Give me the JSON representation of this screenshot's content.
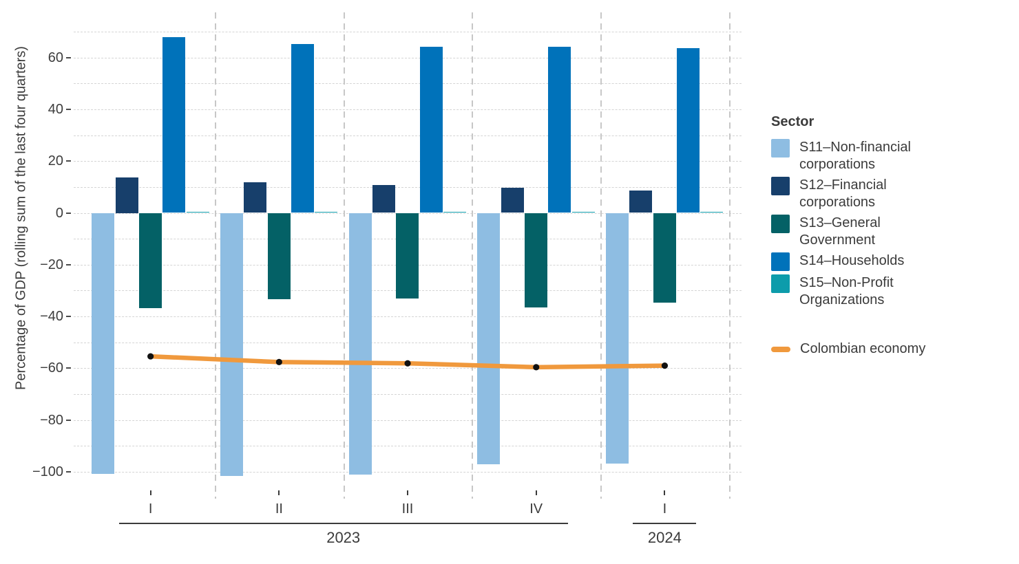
{
  "chart_data": {
    "type": "bar",
    "subtype": "grouped bars with overlaid line",
    "title": "",
    "xlabel": "",
    "ylabel": "Percentage of GDP (rolling sum of the last four quarters)",
    "categories": [
      "I",
      "II",
      "III",
      "IV",
      "I"
    ],
    "year_groups": [
      {
        "label": "2023",
        "from": 0,
        "to": 3
      },
      {
        "label": "2024",
        "from": 4,
        "to": 4
      }
    ],
    "series": [
      {
        "name": "S11–Non-financial corporations",
        "color": "#8ebde2",
        "values": [
          -100.8,
          -101.5,
          -101.0,
          -97.1,
          -96.7
        ]
      },
      {
        "name": "S12–Financial corporations",
        "color": "#173f6b",
        "values": [
          13.8,
          11.7,
          10.8,
          9.6,
          8.7
        ]
      },
      {
        "name": "S13–General Government",
        "color": "#046166",
        "values": [
          -36.7,
          -33.3,
          -33.0,
          -36.4,
          -34.7
        ]
      },
      {
        "name": "S14–Households",
        "color": "#0072ba",
        "values": [
          67.8,
          65.3,
          64.2,
          64.1,
          63.7
        ]
      },
      {
        "name": "S15–Non-Profit Organizations",
        "color": "#0d9cab",
        "values": [
          0.5,
          0.5,
          0.5,
          0.5,
          0.5
        ]
      }
    ],
    "line_series": {
      "name": "Colombian economy",
      "color": "#f0993d",
      "point_color": "#111111",
      "values": [
        -55.4,
        -57.6,
        -58.1,
        -59.6,
        -59.0
      ]
    },
    "ylim": [
      -110,
      78
    ],
    "y_major_ticks": [
      60,
      40,
      20,
      0,
      -20,
      -40,
      -60,
      -80,
      -100
    ],
    "y_minor_grid_step": 10,
    "y_grid_range": [
      -100,
      70
    ],
    "grid": "horizontal dashed gridlines every 10; vertical dashed separators between quarter panels",
    "legend_position": "right",
    "legend_title": "Sector"
  }
}
